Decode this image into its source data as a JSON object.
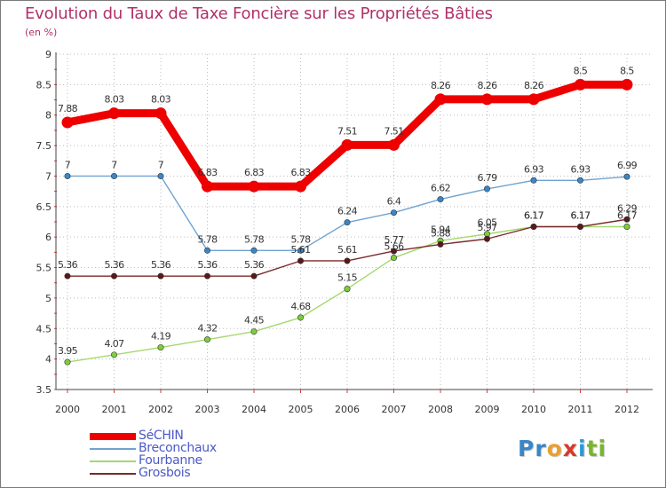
{
  "header": {
    "title": "Evolution du Taux de Taxe Foncière sur les Propriétés Bâties",
    "subtitle": "(en %)"
  },
  "logo": {
    "letters": [
      "P",
      "r",
      "o",
      "x",
      "i",
      "t",
      "i"
    ],
    "colors": [
      "#3a86c8",
      "#3a86c8",
      "#e8a030",
      "#d63a2a",
      "#2a9ad6",
      "#7ab530",
      "#7ab530"
    ]
  },
  "chart_data": {
    "type": "line",
    "title": "Evolution du Taux de Taxe Foncière sur les Propriétés Bâties",
    "ylabel": "(en %)",
    "xlabel": "",
    "x": [
      "2000",
      "2001",
      "2002",
      "2003",
      "2004",
      "2005",
      "2006",
      "2007",
      "2008",
      "2009",
      "2010",
      "2011",
      "2012"
    ],
    "ylim": [
      3.5,
      9
    ],
    "yticks": [
      3.5,
      4,
      4.5,
      5,
      5.5,
      6,
      6.5,
      7,
      7.5,
      8,
      8.5,
      9
    ],
    "ytick_labels": [
      "3.5",
      "4",
      "4.5",
      "5",
      "5.5",
      "6",
      "6.5",
      "7",
      "7.5",
      "8",
      "8.5",
      "9"
    ],
    "series": [
      {
        "name": "Fourbanne",
        "color": "#a6d86e",
        "marker": "#7ccf3a",
        "values": [
          3.95,
          4.07,
          4.19,
          4.32,
          4.45,
          4.68,
          5.15,
          5.66,
          5.94,
          6.05,
          6.17,
          6.17,
          6.17
        ],
        "labels": [
          "3.95",
          "4.07",
          "4.19",
          "4.32",
          "4.45",
          "4.68",
          "5.15",
          "5.66",
          "5.94",
          "6.05",
          "6.17",
          "6.17",
          "6.17"
        ]
      },
      {
        "name": "Grosbois",
        "color": "#7a2a2a",
        "marker": "#5a1818",
        "values": [
          5.36,
          5.36,
          5.36,
          5.36,
          5.36,
          5.61,
          5.61,
          5.77,
          5.88,
          5.97,
          6.17,
          6.17,
          6.29
        ],
        "labels": [
          "5.36",
          "5.36",
          "5.36",
          "5.36",
          "5.36",
          "5.61",
          "5.61",
          "5.77",
          "5.88",
          "5.97",
          "6.17",
          "6.17",
          "6.29"
        ]
      },
      {
        "name": "Breconchaux",
        "color": "#6fa3cf",
        "marker": "#3b86c6",
        "values": [
          7,
          7,
          7,
          5.78,
          5.78,
          5.78,
          6.24,
          6.4,
          6.62,
          6.79,
          6.93,
          6.93,
          6.99
        ],
        "labels": [
          "7",
          "7",
          "7",
          "5.78",
          "5.78",
          "5.78",
          "6.24",
          "6.4",
          "6.62",
          "6.79",
          "6.93",
          "6.93",
          "6.99"
        ]
      },
      {
        "name": "SéCHIN",
        "color": "#ee0000",
        "marker": "#ee0000",
        "values": [
          7.88,
          8.03,
          8.03,
          6.83,
          6.83,
          6.83,
          7.51,
          7.51,
          8.26,
          8.26,
          8.26,
          8.5,
          8.5
        ],
        "labels": [
          "7.88",
          "8.03",
          "8.03",
          "6.83",
          "6.83",
          "6.83",
          "7.51",
          "7.51",
          "8.26",
          "8.26",
          "8.26",
          "8.5",
          "8.5"
        ]
      }
    ],
    "legend": [
      "SéCHIN",
      "Breconchaux",
      "Fourbanne",
      "Grosbois"
    ],
    "legend_position": "bottom-left",
    "grid": true
  }
}
